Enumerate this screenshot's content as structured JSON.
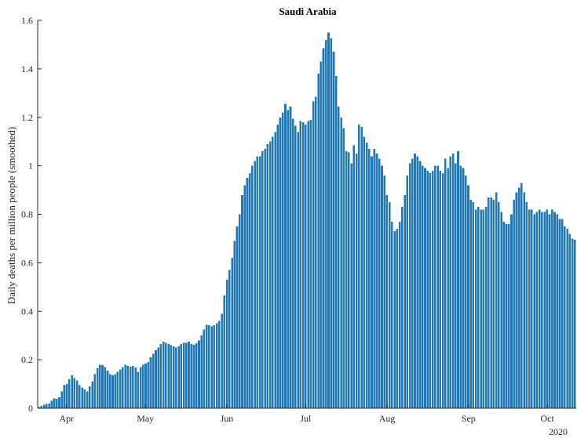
{
  "chart_data": {
    "type": "bar",
    "title": "Saudi Arabia",
    "ylabel": "Daily deaths per million people (smoothed)",
    "xlabel": "",
    "ylim": [
      0,
      1.6
    ],
    "yticks": [
      0,
      0.2,
      0.4,
      0.6,
      0.8,
      1,
      1.2,
      1.4,
      1.6
    ],
    "ytick_labels": [
      "0",
      "0.2",
      "0.4",
      "0.6",
      "0.8",
      "1",
      "1.2",
      "1.4",
      "1.6"
    ],
    "x_start_date": "2020-03-21",
    "x_end_date": "2020-10-12",
    "xticks": [
      {
        "date": "2020-04-01",
        "label": "Apr"
      },
      {
        "date": "2020-05-01",
        "label": "May"
      },
      {
        "date": "2020-06-01",
        "label": "Jun"
      },
      {
        "date": "2020-07-01",
        "label": "Jul"
      },
      {
        "date": "2020-08-01",
        "label": "Aug"
      },
      {
        "date": "2020-09-01",
        "label": "Sep"
      },
      {
        "date": "2020-10-01",
        "label": "Oct"
      }
    ],
    "x_year_label": "2020",
    "bar_color": "#1f77b4",
    "grid": false,
    "legend": "none",
    "values": [
      0.005,
      0.01,
      0.015,
      0.018,
      0.02,
      0.03,
      0.04,
      0.038,
      0.045,
      0.07,
      0.095,
      0.1,
      0.12,
      0.135,
      0.125,
      0.115,
      0.095,
      0.085,
      0.078,
      0.07,
      0.09,
      0.11,
      0.14,
      0.165,
      0.18,
      0.178,
      0.17,
      0.155,
      0.14,
      0.135,
      0.14,
      0.15,
      0.16,
      0.17,
      0.18,
      0.175,
      0.172,
      0.175,
      0.168,
      0.15,
      0.17,
      0.18,
      0.185,
      0.19,
      0.21,
      0.225,
      0.24,
      0.25,
      0.265,
      0.275,
      0.27,
      0.265,
      0.26,
      0.255,
      0.25,
      0.255,
      0.265,
      0.27,
      0.27,
      0.275,
      0.265,
      0.262,
      0.268,
      0.28,
      0.3,
      0.325,
      0.345,
      0.342,
      0.338,
      0.342,
      0.35,
      0.36,
      0.39,
      0.465,
      0.53,
      0.57,
      0.62,
      0.69,
      0.75,
      0.8,
      0.88,
      0.92,
      0.95,
      0.97,
      1.0,
      1.02,
      1.04,
      1.04,
      1.06,
      1.07,
      1.09,
      1.1,
      1.12,
      1.14,
      1.17,
      1.2,
      1.22,
      1.255,
      1.23,
      1.245,
      1.195,
      1.165,
      1.14,
      1.185,
      1.18,
      1.17,
      1.185,
      1.19,
      1.265,
      1.285,
      1.38,
      1.43,
      1.485,
      1.52,
      1.55,
      1.525,
      1.47,
      1.37,
      1.245,
      1.2,
      1.155,
      1.06,
      1.055,
      1.01,
      1.085,
      1.05,
      1.17,
      1.16,
      1.12,
      1.095,
      1.07,
      1.04,
      1.07,
      1.05,
      1.03,
      1.0,
      0.96,
      0.88,
      0.85,
      0.77,
      0.73,
      0.74,
      0.77,
      0.83,
      0.88,
      0.96,
      1.01,
      1.03,
      1.05,
      1.04,
      1.02,
      1.0,
      0.99,
      0.98,
      0.97,
      0.98,
      1.0,
      1.0,
      0.98,
      0.97,
      1.03,
      0.99,
      1.04,
      1.05,
      1.01,
      1.06,
      1.0,
      0.99,
      0.96,
      0.92,
      0.86,
      0.85,
      0.82,
      0.83,
      0.82,
      0.82,
      0.83,
      0.87,
      0.87,
      0.86,
      0.89,
      0.85,
      0.81,
      0.77,
      0.76,
      0.76,
      0.8,
      0.86,
      0.89,
      0.91,
      0.93,
      0.89,
      0.85,
      0.82,
      0.82,
      0.8,
      0.81,
      0.82,
      0.81,
      0.81,
      0.82,
      0.8,
      0.82,
      0.81,
      0.8,
      0.78,
      0.78,
      0.75,
      0.74,
      0.72,
      0.7,
      0.695
    ]
  }
}
